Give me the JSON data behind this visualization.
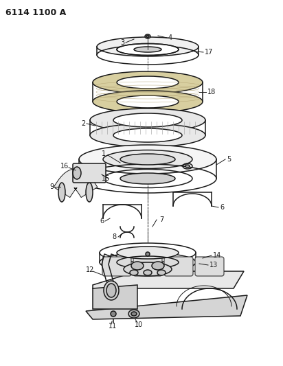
{
  "title": "6114 1100 A",
  "bg_color": "#ffffff",
  "lc": "#1a1a1a",
  "figsize": [
    4.12,
    5.33
  ],
  "dpi": 100,
  "lw_main": 1.1,
  "lw_thin": 0.7,
  "lw_thick": 1.5
}
